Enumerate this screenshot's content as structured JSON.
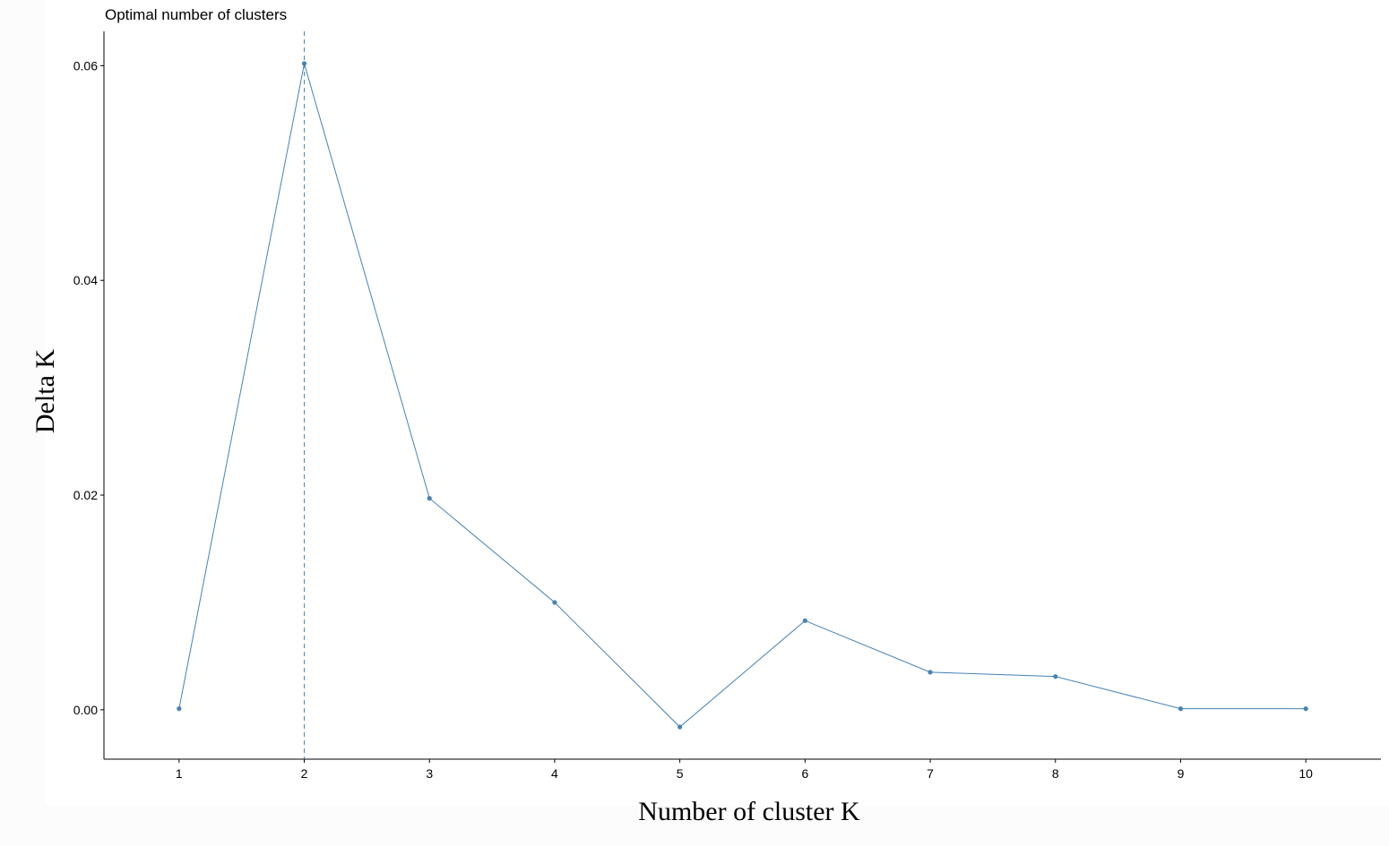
{
  "chart_data": {
    "type": "line",
    "title": "Optimal number of clusters",
    "xlabel": "Number of cluster K",
    "ylabel": "Delta K",
    "x": [
      1,
      2,
      3,
      4,
      5,
      6,
      7,
      8,
      9,
      10
    ],
    "values": [
      0.0001,
      0.0602,
      0.0197,
      0.01,
      -0.0016,
      0.0083,
      0.0035,
      0.0031,
      0.0001,
      0.0001
    ],
    "xticks": [
      "1",
      "2",
      "3",
      "4",
      "5",
      "6",
      "7",
      "8",
      "9",
      "10"
    ],
    "yticks": [
      0.0,
      0.02,
      0.04,
      0.06
    ],
    "ytick_labels": [
      "0.00",
      "0.02",
      "0.04",
      "0.06"
    ],
    "xlim": [
      0.4,
      10.6
    ],
    "ylim": [
      -0.0046,
      0.0632
    ],
    "vline_x": 2,
    "vline_style": "dashed",
    "grid": false,
    "colors": {
      "series": "#4682B4",
      "axis": "#000000"
    }
  }
}
